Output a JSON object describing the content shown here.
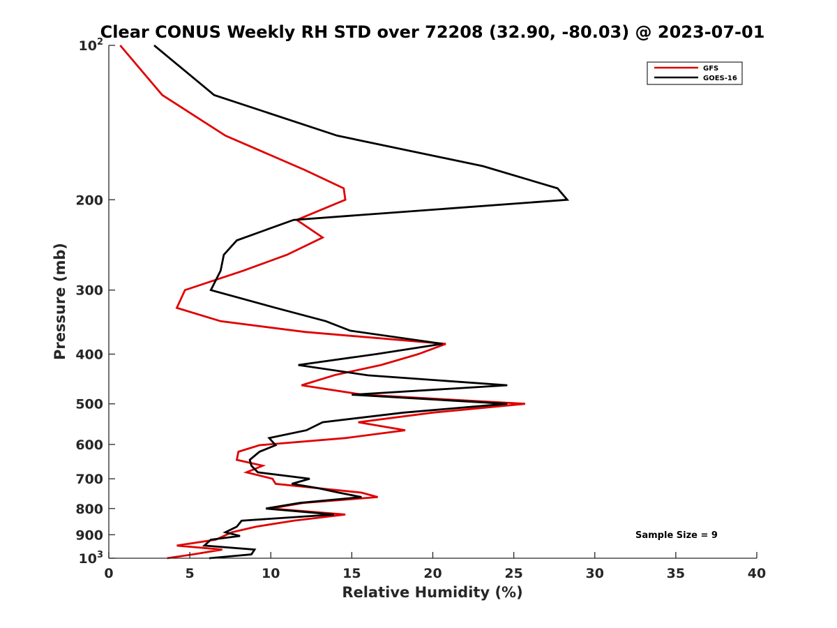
{
  "chart_data": {
    "type": "line",
    "title": "Clear CONUS Weekly RH STD over 72208 (32.90, -80.03) @ 2023-07-01",
    "xlabel": "Relative Humidity (%)",
    "ylabel": "Pressure (mb)",
    "xlim": [
      0,
      40
    ],
    "ylim": [
      100,
      1000
    ],
    "y_scale": "log",
    "y_reversed": true,
    "x_ticks": [
      "0",
      "5",
      "10",
      "15",
      "20",
      "25",
      "30",
      "35",
      "40"
    ],
    "x_tick_values": [
      0,
      5,
      10,
      15,
      20,
      25,
      30,
      35,
      40
    ],
    "y_tick_values": [
      100,
      200,
      300,
      400,
      500,
      600,
      700,
      800,
      900,
      1000
    ],
    "y_ticks": [
      {
        "base": "10",
        "sup": "2"
      },
      {
        "base": "200",
        "sup": ""
      },
      {
        "base": "300",
        "sup": ""
      },
      {
        "base": "400",
        "sup": ""
      },
      {
        "base": "500",
        "sup": ""
      },
      {
        "base": "600",
        "sup": ""
      },
      {
        "base": "700",
        "sup": ""
      },
      {
        "base": "800",
        "sup": ""
      },
      {
        "base": "900",
        "sup": ""
      },
      {
        "base": "10",
        "sup": "3"
      }
    ],
    "grid": false,
    "legend_position": "top-right",
    "annotation": "Sample Size = 9",
    "series": [
      {
        "name": "GFS",
        "color": "#e00000",
        "points": [
          [
            0.7,
            100
          ],
          [
            3.3,
            125
          ],
          [
            7.2,
            150
          ],
          [
            12.1,
            175
          ],
          [
            14.5,
            190
          ],
          [
            14.6,
            200
          ],
          [
            11.6,
            219
          ],
          [
            13.2,
            237
          ],
          [
            11.0,
            256
          ],
          [
            8.3,
            275
          ],
          [
            4.7,
            300
          ],
          [
            4.2,
            325
          ],
          [
            6.9,
            345
          ],
          [
            12.1,
            362
          ],
          [
            20.8,
            382
          ],
          [
            19.1,
            400
          ],
          [
            16.8,
            420
          ],
          [
            14.0,
            439
          ],
          [
            11.9,
            460
          ],
          [
            15.7,
            480
          ],
          [
            25.7,
            500
          ],
          [
            20.0,
            520
          ],
          [
            15.4,
            543
          ],
          [
            18.3,
            563
          ],
          [
            14.6,
            583
          ],
          [
            9.3,
            602
          ],
          [
            8.0,
            620
          ],
          [
            7.9,
            643
          ],
          [
            9.5,
            660
          ],
          [
            8.5,
            680
          ],
          [
            10.1,
            700
          ],
          [
            10.3,
            716
          ],
          [
            15.6,
            745
          ],
          [
            16.6,
            760
          ],
          [
            12.0,
            780
          ],
          [
            10.0,
            800
          ],
          [
            14.6,
            822
          ],
          [
            11.4,
            845
          ],
          [
            9.1,
            868
          ],
          [
            7.6,
            890
          ],
          [
            6.6,
            920
          ],
          [
            4.2,
            945
          ],
          [
            7.0,
            962
          ],
          [
            5.2,
            983
          ],
          [
            3.6,
            1000
          ]
        ]
      },
      {
        "name": "GOES-16",
        "color": "#000000",
        "points": [
          [
            2.8,
            100
          ],
          [
            6.5,
            125
          ],
          [
            14.1,
            150
          ],
          [
            23.1,
            172
          ],
          [
            27.7,
            190
          ],
          [
            28.3,
            200
          ],
          [
            11.4,
            219
          ],
          [
            7.9,
            240
          ],
          [
            7.1,
            256
          ],
          [
            6.9,
            275
          ],
          [
            6.3,
            300
          ],
          [
            10.3,
            325
          ],
          [
            13.4,
            345
          ],
          [
            14.9,
            360
          ],
          [
            20.6,
            382
          ],
          [
            16.5,
            400
          ],
          [
            11.7,
            420
          ],
          [
            16.0,
            440
          ],
          [
            24.6,
            460
          ],
          [
            15.0,
            480
          ],
          [
            24.6,
            500
          ],
          [
            18.2,
            520
          ],
          [
            13.2,
            543
          ],
          [
            12.2,
            563
          ],
          [
            9.9,
            583
          ],
          [
            10.3,
            602
          ],
          [
            9.3,
            620
          ],
          [
            8.7,
            643
          ],
          [
            8.8,
            660
          ],
          [
            9.2,
            680
          ],
          [
            12.4,
            700
          ],
          [
            11.3,
            716
          ],
          [
            12.9,
            730
          ],
          [
            14.2,
            745
          ],
          [
            15.6,
            760
          ],
          [
            11.8,
            780
          ],
          [
            9.7,
            800
          ],
          [
            13.9,
            822
          ],
          [
            8.2,
            845
          ],
          [
            7.9,
            868
          ],
          [
            7.2,
            890
          ],
          [
            8.1,
            905
          ],
          [
            6.3,
            920
          ],
          [
            5.9,
            945
          ],
          [
            9.0,
            962
          ],
          [
            8.8,
            983
          ],
          [
            6.2,
            1000
          ]
        ]
      }
    ]
  }
}
